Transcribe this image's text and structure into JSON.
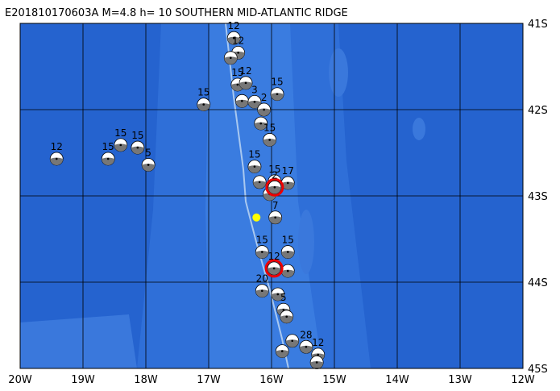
{
  "map": {
    "title": "E201810170603A M=4.8 h= 10 SOUTHERN MID-ATLANTIC RIDGE",
    "xlim": [
      -20,
      -12
    ],
    "ylim": [
      -45,
      -41
    ],
    "xticks": [
      {
        "value": -20,
        "label": "20W"
      },
      {
        "value": -19,
        "label": "19W"
      },
      {
        "value": -18,
        "label": "18W"
      },
      {
        "value": -17,
        "label": "17W"
      },
      {
        "value": -16,
        "label": "16W"
      },
      {
        "value": -15,
        "label": "15W"
      },
      {
        "value": -14,
        "label": "14W"
      },
      {
        "value": -13,
        "label": "13W"
      },
      {
        "value": -12,
        "label": "12W"
      }
    ],
    "yticks": [
      {
        "value": -41,
        "label": "41S"
      },
      {
        "value": -42,
        "label": "42S"
      },
      {
        "value": -43,
        "label": "43S"
      },
      {
        "value": -44,
        "label": "44S"
      },
      {
        "value": -45,
        "label": "45S"
      }
    ],
    "epicenter": {
      "lon": -16.24,
      "lat": -43.25,
      "color": "#ffff00"
    },
    "events": [
      {
        "lon": -16.6,
        "lat": -41.17,
        "label": "12"
      },
      {
        "lon": -16.53,
        "lat": -41.34,
        "label": "12"
      },
      {
        "lon": -16.65,
        "lat": -41.4
      },
      {
        "lon": -16.54,
        "lat": -41.71,
        "label": "15"
      },
      {
        "lon": -16.41,
        "lat": -41.69,
        "label": "12"
      },
      {
        "lon": -16.47,
        "lat": -41.9
      },
      {
        "lon": -16.27,
        "lat": -41.91,
        "label": "3"
      },
      {
        "lon": -15.91,
        "lat": -41.82,
        "label": "15"
      },
      {
        "lon": -17.08,
        "lat": -41.94,
        "label": "15"
      },
      {
        "lon": -16.12,
        "lat": -42.0,
        "label": "2"
      },
      {
        "lon": -16.17,
        "lat": -42.16
      },
      {
        "lon": -16.03,
        "lat": -42.35,
        "label": "15"
      },
      {
        "lon": -19.42,
        "lat": -42.57,
        "label": "12"
      },
      {
        "lon": -18.4,
        "lat": -42.41,
        "label": "15"
      },
      {
        "lon": -18.13,
        "lat": -42.44,
        "label": "15"
      },
      {
        "lon": -18.6,
        "lat": -42.57,
        "label": "15"
      },
      {
        "lon": -17.96,
        "lat": -42.64,
        "label": "5"
      },
      {
        "lon": -16.27,
        "lat": -42.66,
        "label": "15"
      },
      {
        "lon": -16.19,
        "lat": -42.84
      },
      {
        "lon": -15.95,
        "lat": -42.83,
        "label": "15"
      },
      {
        "lon": -15.74,
        "lat": -42.85,
        "label": "17"
      },
      {
        "lon": -16.03,
        "lat": -42.98
      },
      {
        "lon": -15.94,
        "lat": -43.25,
        "label": "7"
      },
      {
        "lon": -16.15,
        "lat": -43.65,
        "label": "15"
      },
      {
        "lon": -15.74,
        "lat": -43.65,
        "label": "15"
      },
      {
        "lon": -15.74,
        "lat": -43.87
      },
      {
        "lon": -16.15,
        "lat": -44.1,
        "label": "20"
      },
      {
        "lon": -15.9,
        "lat": -44.14
      },
      {
        "lon": -15.81,
        "lat": -44.32,
        "label": "5"
      },
      {
        "lon": -15.76,
        "lat": -44.4
      },
      {
        "lon": -15.67,
        "lat": -44.68
      },
      {
        "lon": -15.45,
        "lat": -44.75,
        "label": "28"
      },
      {
        "lon": -15.26,
        "lat": -44.84,
        "label": "12"
      },
      {
        "lon": -15.83,
        "lat": -44.8
      },
      {
        "lon": -15.28,
        "lat": -44.93
      },
      {
        "lon": -15.95,
        "lat": -42.9,
        "label": "2",
        "highlight": true
      },
      {
        "lon": -15.96,
        "lat": -43.84,
        "label": "12",
        "highlight": true
      }
    ]
  }
}
